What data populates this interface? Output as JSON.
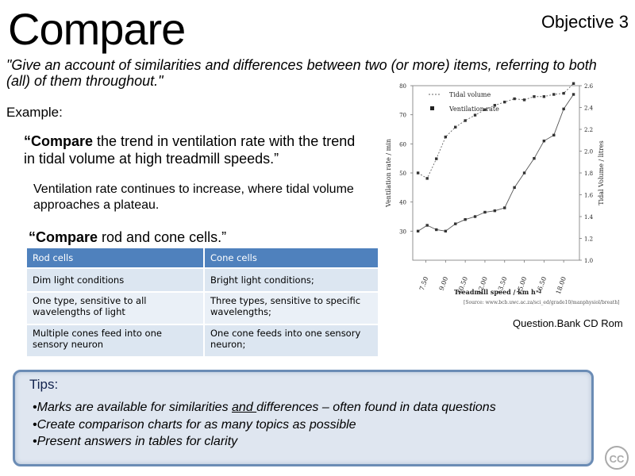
{
  "slide": {
    "title": "Compare",
    "objective": "Objective 3",
    "definition": "\"Give an account of similarities and differences between two (or more) items, referring to both (all) of them throughout.\"",
    "example_label": "Example:",
    "question1": {
      "bold": "“Compare",
      "rest": " the trend in ventilation rate with the trend in tidal volume at high treadmill speeds.”"
    },
    "answer1": "Ventilation rate continues to increase, where tidal volume approaches a plateau.",
    "question2": {
      "bold": "“Compare",
      "rest": " rod and cone cells.”"
    },
    "table": {
      "headers": [
        "Rod cells",
        "Cone cells"
      ],
      "rows": [
        [
          "Dim light conditions",
          "Bright light conditions;"
        ],
        [
          "One type, sensitive to all wavelengths of light",
          "Three types, sensitive to specific wavelengths;"
        ],
        [
          "Multiple cones feed into one sensory neuron",
          "One cone feeds into one sensory neuron;"
        ]
      ]
    },
    "credit": "Question.Bank CD Rom",
    "tips": {
      "title": "Tips:",
      "items": [
        {
          "pre": "Marks are available for similarities ",
          "underline": "and ",
          "post": "differences – often found in data questions"
        },
        {
          "pre": "Create comparison  charts for as many topics as possible",
          "underline": "",
          "post": ""
        },
        {
          "pre": "Present answers in tables for clarity",
          "underline": "",
          "post": ""
        }
      ]
    },
    "cc_badge": "CC"
  },
  "chart_data": {
    "type": "line",
    "categories": [
      "7.50",
      "9.00",
      "10.50",
      "12.00",
      "13.50",
      "15.00",
      "16.50",
      "18.00"
    ],
    "xlabel": "Treadmill speed / km h⁻¹",
    "ylabel": "Ventilation rate / min",
    "y2label": "Tidal Volume / litres",
    "source_note": "[Source: www.bcb.uwc.ac.za/sci_ed/grade10/manphysiol/breath]",
    "ylim": [
      20,
      80
    ],
    "y_ticks": [
      30,
      40,
      50,
      60,
      70,
      80
    ],
    "y2lim": [
      1.0,
      2.6
    ],
    "y2_ticks": [
      "1.0",
      "1.2",
      "1.4",
      "1.6",
      "1.8",
      "2.0",
      "2.2",
      "2.4",
      "2.6"
    ],
    "legend": "top-left",
    "series": [
      {
        "name": "Tidal volume",
        "axis": "right",
        "style": "dashed",
        "x": [
          6.9,
          7.6,
          8.3,
          9.0,
          9.75,
          10.5,
          11.25,
          12.0,
          12.75,
          13.5,
          14.25,
          15.0,
          15.75,
          16.5,
          17.25,
          18.0,
          18.75
        ],
        "values": [
          1.8,
          1.75,
          1.93,
          2.13,
          2.22,
          2.28,
          2.33,
          2.38,
          2.42,
          2.45,
          2.48,
          2.47,
          2.5,
          2.5,
          2.52,
          2.53,
          2.62
        ]
      },
      {
        "name": "Ventilation rate",
        "axis": "left",
        "style": "solid",
        "x": [
          6.9,
          7.6,
          8.3,
          9.0,
          9.75,
          10.5,
          11.25,
          12.0,
          12.75,
          13.5,
          14.25,
          15.0,
          15.75,
          16.5,
          17.25,
          18.0,
          18.75
        ],
        "values": [
          30,
          32,
          30.5,
          30,
          32.5,
          34,
          35,
          36.5,
          37,
          38,
          45,
          50,
          55,
          61,
          63,
          72,
          77
        ]
      }
    ]
  }
}
